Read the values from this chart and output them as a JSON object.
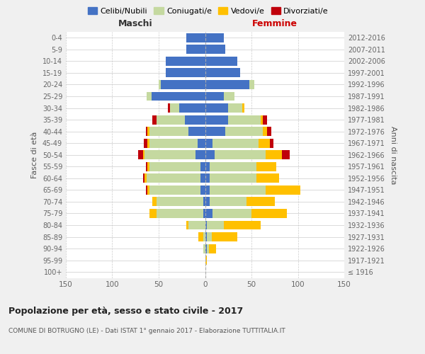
{
  "age_groups": [
    "100+",
    "95-99",
    "90-94",
    "85-89",
    "80-84",
    "75-79",
    "70-74",
    "65-69",
    "60-64",
    "55-59",
    "50-54",
    "45-49",
    "40-44",
    "35-39",
    "30-34",
    "25-29",
    "20-24",
    "15-19",
    "10-14",
    "5-9",
    "0-4"
  ],
  "birth_years": [
    "≤ 1916",
    "1917-1921",
    "1922-1926",
    "1927-1931",
    "1932-1936",
    "1937-1941",
    "1942-1946",
    "1947-1951",
    "1952-1956",
    "1957-1961",
    "1962-1966",
    "1967-1971",
    "1972-1976",
    "1977-1981",
    "1982-1986",
    "1987-1991",
    "1992-1996",
    "1997-2001",
    "2002-2006",
    "2007-2011",
    "2012-2016"
  ],
  "males": {
    "celibi": [
      0,
      0,
      0,
      0,
      0,
      2,
      2,
      5,
      5,
      5,
      10,
      8,
      18,
      22,
      28,
      58,
      48,
      42,
      42,
      20,
      20
    ],
    "coniugati": [
      0,
      0,
      2,
      2,
      18,
      50,
      50,
      55,
      58,
      55,
      55,
      52,
      42,
      30,
      10,
      5,
      2,
      0,
      0,
      0,
      0
    ],
    "vedovi": [
      0,
      0,
      0,
      5,
      2,
      8,
      5,
      2,
      2,
      2,
      2,
      2,
      2,
      0,
      0,
      0,
      0,
      0,
      0,
      0,
      0
    ],
    "divorziati": [
      0,
      0,
      0,
      0,
      0,
      0,
      0,
      2,
      2,
      2,
      5,
      4,
      2,
      5,
      2,
      0,
      0,
      0,
      0,
      0,
      0
    ]
  },
  "females": {
    "nubili": [
      0,
      0,
      2,
      2,
      2,
      8,
      5,
      5,
      5,
      5,
      10,
      8,
      22,
      25,
      25,
      20,
      48,
      38,
      35,
      22,
      20
    ],
    "coniugate": [
      0,
      0,
      2,
      5,
      18,
      42,
      40,
      60,
      50,
      50,
      55,
      50,
      40,
      35,
      15,
      12,
      5,
      0,
      0,
      0,
      0
    ],
    "vedove": [
      0,
      2,
      8,
      28,
      40,
      38,
      30,
      38,
      25,
      22,
      18,
      12,
      5,
      2,
      2,
      0,
      0,
      0,
      0,
      0,
      0
    ],
    "divorziate": [
      0,
      0,
      0,
      0,
      0,
      0,
      0,
      0,
      0,
      0,
      8,
      4,
      4,
      5,
      0,
      0,
      0,
      0,
      0,
      0,
      0
    ]
  },
  "colors": {
    "celibi": "#4472c4",
    "coniugati": "#c5d9a0",
    "vedovi": "#ffc000",
    "divorziati": "#c0000b"
  },
  "xlim": 150,
  "title": "Popolazione per età, sesso e stato civile - 2017",
  "subtitle": "COMUNE DI BOTRUGNO (LE) - Dati ISTAT 1° gennaio 2017 - Elaborazione TUTTITALIA.IT",
  "ylabel_left": "Fasce di età",
  "ylabel_right": "Anni di nascita",
  "xlabel_maschi": "Maschi",
  "xlabel_femmine": "Femmine",
  "bg_color": "#f0f0f0",
  "plot_bg": "#ffffff",
  "grid_color": "#cccccc"
}
